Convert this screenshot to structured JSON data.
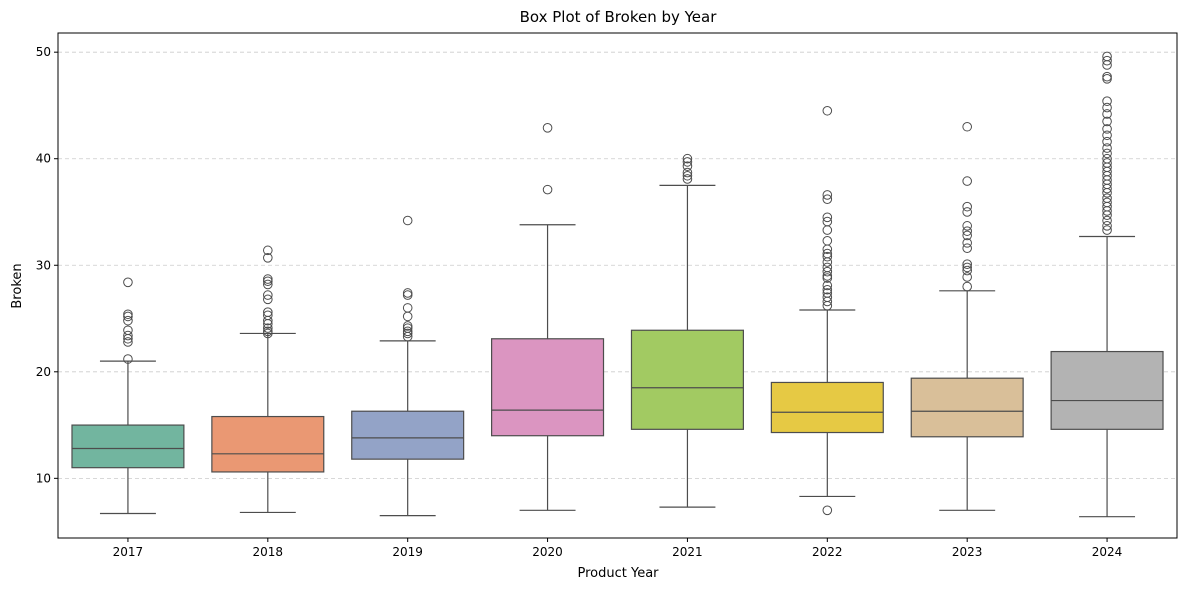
{
  "chart_data": {
    "type": "box",
    "title": "Box Plot of Broken by Year",
    "xlabel": "Product Year",
    "ylabel": "Broken",
    "ylim": [
      4.4,
      51.8
    ],
    "yticks": [
      10,
      20,
      30,
      40,
      50
    ],
    "grid": "y-dashed",
    "categories": [
      "2017",
      "2018",
      "2019",
      "2020",
      "2021",
      "2022",
      "2023",
      "2024"
    ],
    "colors": [
      "#72b59f",
      "#ea9873",
      "#93a3c7",
      "#db95c1",
      "#a2ca62",
      "#e6c944",
      "#d9bf99",
      "#b3b3b3"
    ],
    "boxes": [
      {
        "whisker_low": 6.7,
        "q1": 11.0,
        "median": 12.8,
        "q3": 15.0,
        "whisker_high": 21.0,
        "outliers": [
          21.2,
          22.8,
          23.1,
          23.4,
          23.9,
          24.8,
          25.2,
          25.4,
          28.4
        ]
      },
      {
        "whisker_low": 6.8,
        "q1": 10.6,
        "median": 12.3,
        "q3": 15.8,
        "whisker_high": 23.6,
        "outliers": [
          23.6,
          23.8,
          24.1,
          24.5,
          24.8,
          25.3,
          25.6,
          26.8,
          27.2,
          28.2,
          28.5,
          28.7,
          30.7,
          31.4
        ]
      },
      {
        "whisker_low": 6.5,
        "q1": 11.8,
        "median": 13.8,
        "q3": 16.3,
        "whisker_high": 22.9,
        "outliers": [
          23.3,
          23.6,
          23.8,
          24.1,
          24.3,
          25.2,
          26.0,
          27.2,
          27.4,
          34.2
        ]
      },
      {
        "whisker_low": 7.0,
        "q1": 14.0,
        "median": 16.4,
        "q3": 23.1,
        "whisker_high": 33.8,
        "outliers": [
          37.1,
          42.9
        ]
      },
      {
        "whisker_low": 7.3,
        "q1": 14.6,
        "median": 18.5,
        "q3": 23.9,
        "whisker_high": 37.5,
        "outliers": [
          38.1,
          38.4,
          38.7,
          39.3,
          39.7,
          40.0
        ]
      },
      {
        "whisker_low": 8.3,
        "q1": 14.3,
        "median": 16.2,
        "q3": 19.0,
        "whisker_high": 25.8,
        "outliers": [
          7.0,
          26.2,
          26.6,
          27.0,
          27.4,
          27.7,
          28.1,
          28.8,
          29.0,
          29.4,
          29.8,
          30.3,
          30.8,
          31.1,
          31.5,
          32.3,
          33.3,
          34.1,
          34.5,
          36.2,
          36.6,
          44.5
        ]
      },
      {
        "whisker_low": 7.0,
        "q1": 13.9,
        "median": 16.3,
        "q3": 19.4,
        "whisker_high": 27.6,
        "outliers": [
          28.0,
          28.9,
          29.5,
          29.8,
          30.1,
          31.6,
          32.1,
          32.8,
          33.2,
          33.7,
          35.0,
          35.5,
          37.9,
          43.0
        ]
      },
      {
        "whisker_low": 6.4,
        "q1": 14.6,
        "median": 17.3,
        "q3": 21.9,
        "whisker_high": 32.7,
        "outliers": [
          33.3,
          33.7,
          34.2,
          34.7,
          35.1,
          35.5,
          35.9,
          36.3,
          36.8,
          37.2,
          37.6,
          38.0,
          38.4,
          38.8,
          39.2,
          39.6,
          40.0,
          40.5,
          41.0,
          41.6,
          42.2,
          42.8,
          43.5,
          44.2,
          44.8,
          45.4,
          47.5,
          47.7,
          48.8,
          49.2,
          49.6
        ]
      }
    ]
  }
}
